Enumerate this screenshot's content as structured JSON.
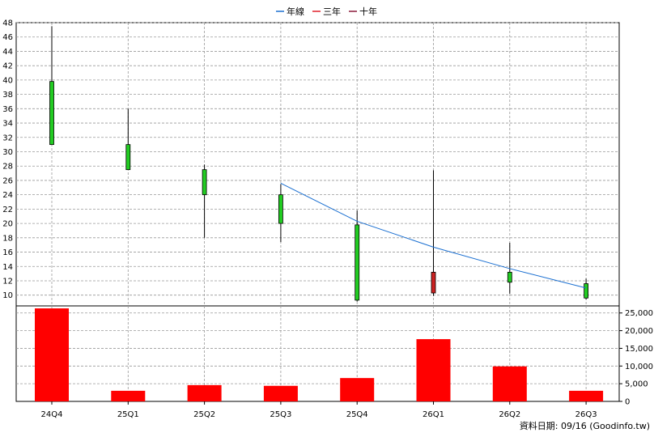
{
  "legend": [
    {
      "label": "年線",
      "color": "#1a6fd1"
    },
    {
      "label": "三年",
      "color": "#e0202a"
    },
    {
      "label": "十年",
      "color": "#8b1a3a"
    }
  ],
  "footer": "資料日期: 09/16  (Goodinfo.tw)",
  "chart_data": {
    "type": "candlestick+bar",
    "categories": [
      "24Q4",
      "25Q1",
      "25Q2",
      "25Q3",
      "25Q4",
      "26Q1",
      "26Q2",
      "26Q3"
    ],
    "price_axis": {
      "min": 10,
      "max": 48,
      "ticks": [
        10,
        12,
        14,
        16,
        18,
        20,
        22,
        24,
        26,
        28,
        30,
        32,
        34,
        36,
        38,
        40,
        42,
        44,
        46,
        48
      ]
    },
    "candles": [
      {
        "open": 39.8,
        "close": 31.0,
        "high": 47.5,
        "low": 31.0,
        "color": "#22cc22"
      },
      {
        "open": 31.0,
        "close": 27.5,
        "high": 36.0,
        "low": 27.5,
        "color": "#22cc22"
      },
      {
        "open": 27.5,
        "close": 24.0,
        "high": 28.2,
        "low": 18.0,
        "color": "#22cc22"
      },
      {
        "open": 24.0,
        "close": 20.0,
        "high": 25.5,
        "low": 17.4,
        "color": "#22cc22"
      },
      {
        "open": 19.8,
        "close": 9.3,
        "high": 21.8,
        "low": 9.1,
        "color": "#22cc22"
      },
      {
        "open": 10.3,
        "close": 13.2,
        "high": 27.4,
        "low": 9.9,
        "color": "#cc2222"
      },
      {
        "open": 13.2,
        "close": 11.8,
        "high": 17.3,
        "low": 10.2,
        "color": "#22cc22"
      },
      {
        "open": 11.6,
        "close": 9.6,
        "high": 12.3,
        "low": 9.4,
        "color": "#22cc22"
      }
    ],
    "line_series": [
      {
        "name": "年線",
        "color": "#1a6fd1",
        "points": [
          {
            "category": "25Q3",
            "value": 25.6
          },
          {
            "category": "25Q4",
            "value": 20.3
          },
          {
            "category": "26Q1",
            "value": 16.7
          },
          {
            "category": "26Q2",
            "value": 13.7
          },
          {
            "category": "26Q3",
            "value": 11.0
          }
        ]
      }
    ],
    "volume_axis": {
      "min": 0,
      "max": 27000,
      "ticks": [
        0,
        5000,
        10000,
        15000,
        20000,
        25000
      ],
      "tick_labels": [
        "0",
        "5,000",
        "10,000",
        "15,000",
        "20,000",
        "25,000"
      ]
    },
    "volumes": [
      26300,
      3000,
      4600,
      4400,
      6600,
      17600,
      9900,
      3000
    ],
    "volume_color": "#ff0000"
  }
}
